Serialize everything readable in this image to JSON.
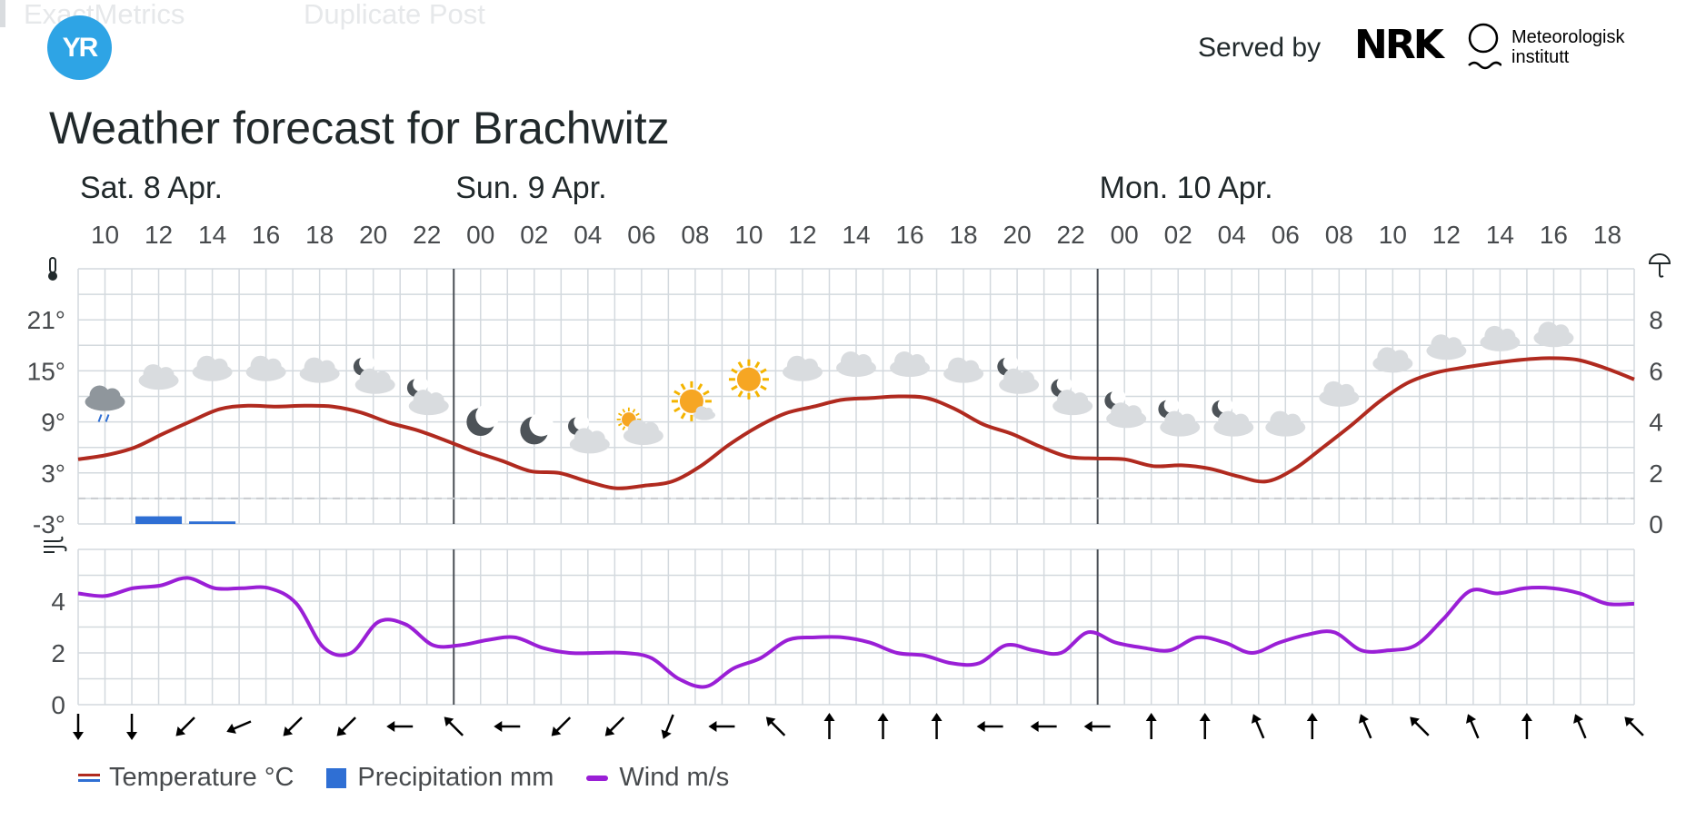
{
  "background_tabs": [
    "ExactMetrics",
    "Duplicate Post"
  ],
  "header": {
    "logo_text": "YR",
    "served_by": "Served by",
    "nrk_logo": "NRK",
    "met_line1": "Meteorologisk",
    "met_line2": "institutt"
  },
  "title": "Weather forecast for Brachwitz",
  "chart_data": {
    "type": "line",
    "x": [
      "10",
      "12",
      "14",
      "16",
      "18",
      "20",
      "22",
      "00",
      "02",
      "04",
      "06",
      "08",
      "10",
      "12",
      "14",
      "16",
      "18",
      "20",
      "22",
      "00",
      "02",
      "04",
      "06",
      "08",
      "10",
      "12",
      "14",
      "16",
      "18"
    ],
    "days": [
      {
        "label": "Sat. 8 Apr.",
        "start_index": 0
      },
      {
        "label": "Sun. 9 Apr.",
        "start_index": 7
      },
      {
        "label": "Mon. 10 Apr.",
        "start_index": 19
      }
    ],
    "temperature": {
      "name": "Temperature °C",
      "unit": "°",
      "color": "#b02a1f",
      "ylim": [
        -3,
        27
      ],
      "yticks": [
        -3,
        3,
        9,
        15,
        21
      ],
      "values": [
        4.6,
        5.1,
        6.0,
        7.6,
        9.1,
        10.5,
        10.9,
        10.8,
        10.9,
        10.8,
        10.1,
        8.9,
        8.0,
        6.8,
        5.5,
        4.4,
        3.2,
        3.0,
        2.0,
        1.2,
        1.5,
        2.0,
        3.8,
        6.3,
        8.4,
        10.0,
        10.8,
        11.6,
        11.8,
        12.0,
        11.8,
        10.5,
        8.7,
        7.6,
        6.1,
        4.9,
        4.7,
        4.6,
        3.8,
        3.9,
        3.5,
        2.6,
        2.0,
        3.5,
        6.0,
        8.6,
        11.4,
        13.6,
        14.8,
        15.4,
        15.9,
        16.3,
        16.5,
        16.3,
        15.3,
        14.0
      ]
    },
    "precipitation": {
      "name": "Precipitation mm",
      "color": "#2f6fd4",
      "ylim": [
        0,
        10
      ],
      "yticks": [
        0,
        2,
        4,
        6,
        8
      ],
      "values": [
        0,
        0.3,
        0.1,
        0,
        0,
        0,
        0,
        0,
        0,
        0,
        0,
        0,
        0,
        0,
        0,
        0,
        0,
        0,
        0,
        0,
        0,
        0,
        0,
        0,
        0,
        0,
        0,
        0,
        0
      ]
    },
    "wind": {
      "name": "Wind m/s",
      "color": "#9a1fd6",
      "ylim": [
        0,
        6
      ],
      "yticks": [
        0,
        2,
        4
      ],
      "values": [
        4.3,
        4.2,
        4.5,
        4.6,
        4.9,
        4.5,
        4.5,
        4.5,
        3.9,
        2.2,
        2.0,
        3.2,
        3.1,
        2.3,
        2.3,
        2.5,
        2.6,
        2.2,
        2.0,
        2.0,
        2.0,
        1.8,
        1.0,
        0.7,
        1.4,
        1.8,
        2.5,
        2.6,
        2.6,
        2.4,
        2.0,
        1.9,
        1.6,
        1.6,
        2.3,
        2.1,
        2.0,
        2.8,
        2.4,
        2.2,
        2.1,
        2.6,
        2.4,
        2.0,
        2.4,
        2.7,
        2.8,
        2.1,
        2.1,
        2.3,
        3.3,
        4.4,
        4.3,
        4.5,
        4.5,
        4.3,
        3.9,
        3.9
      ]
    },
    "wind_directions": [
      "S",
      "S",
      "SW",
      "WSW",
      "SW",
      "SW",
      "W",
      "NW",
      "W",
      "SW",
      "SW",
      "SSW",
      "W",
      "NW",
      "N",
      "N",
      "N",
      "W",
      "W",
      "W",
      "N",
      "N",
      "NNW",
      "N",
      "NNW",
      "NW",
      "NNW",
      "N",
      "NNW",
      "NW"
    ],
    "symbols": [
      {
        "icon": "rain-cloud-icon",
        "value": 12
      },
      {
        "icon": "cloud-icon",
        "value": 14.5
      },
      {
        "icon": "cloud-icon",
        "value": 15.5
      },
      {
        "icon": "cloud-icon",
        "value": 15.5
      },
      {
        "icon": "cloud-icon",
        "value": 15.3
      },
      {
        "icon": "partly-cloudy-night-icon",
        "value": 14
      },
      {
        "icon": "partly-cloudy-night-icon",
        "value": 11.5
      },
      {
        "icon": "moon-icon",
        "value": 9
      },
      {
        "icon": "moon-icon",
        "value": 8
      },
      {
        "icon": "partly-cloudy-night-icon",
        "value": 7
      },
      {
        "icon": "partly-cloudy-day-icon",
        "value": 8
      },
      {
        "icon": "partly-sunny-icon",
        "value": 11
      },
      {
        "icon": "sun-icon",
        "value": 14
      },
      {
        "icon": "cloud-icon",
        "value": 15.5
      },
      {
        "icon": "cloud-icon",
        "value": 16
      },
      {
        "icon": "cloud-icon",
        "value": 16
      },
      {
        "icon": "cloud-icon",
        "value": 15.3
      },
      {
        "icon": "partly-cloudy-night-icon",
        "value": 14
      },
      {
        "icon": "partly-cloudy-night-icon",
        "value": 11.5
      },
      {
        "icon": "partly-cloudy-night-icon",
        "value": 10
      },
      {
        "icon": "partly-cloudy-night-icon",
        "value": 9
      },
      {
        "icon": "partly-cloudy-night-icon",
        "value": 9
      },
      {
        "icon": "cloud-icon",
        "value": 9
      },
      {
        "icon": "cloud-icon",
        "value": 12.5
      },
      {
        "icon": "cloud-icon",
        "value": 16.5
      },
      {
        "icon": "cloud-icon",
        "value": 18
      },
      {
        "icon": "cloud-icon",
        "value": 19
      },
      {
        "icon": "cloud-icon",
        "value": 19.5
      }
    ],
    "zero_line": 0,
    "grid": true
  },
  "legend": {
    "temperature": "Temperature °C",
    "precipitation": "Precipitation mm",
    "wind": "Wind m/s"
  }
}
